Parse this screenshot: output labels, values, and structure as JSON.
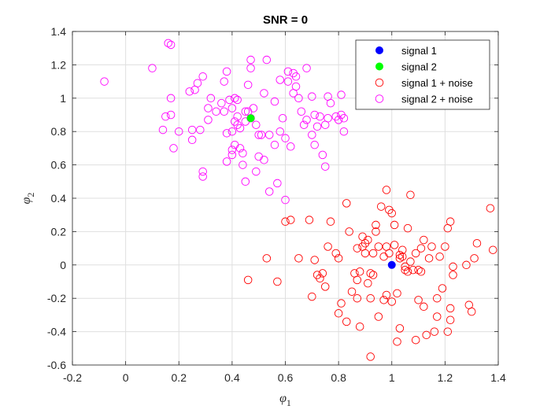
{
  "chart_data": {
    "type": "scatter",
    "title": "SNR = 0",
    "xlabel": {
      "base": "φ",
      "sub": "1"
    },
    "ylabel": {
      "base": "φ",
      "sub": "2"
    },
    "xlim": [
      -0.2,
      1.4
    ],
    "ylim": [
      -0.6,
      1.4
    ],
    "xticks": [
      "-0.2",
      "0",
      "0.2",
      "0.4",
      "0.6",
      "0.8",
      "1",
      "1.2",
      "1.4"
    ],
    "yticks": [
      "-0.6",
      "-0.4",
      "-0.2",
      "0",
      "0.2",
      "0.4",
      "0.6",
      "0.8",
      "1",
      "1.2",
      "1.4"
    ],
    "grid": true,
    "legend_position": "top-right",
    "series": [
      {
        "name": "signal 1",
        "marker": "filled",
        "color": "#0000ff",
        "points": [
          [
            1.0,
            0.0
          ]
        ]
      },
      {
        "name": "signal 2",
        "marker": "filled",
        "color": "#00ff00",
        "points": [
          [
            0.47,
            0.88
          ]
        ]
      },
      {
        "name": "signal 1 + noise",
        "marker": "open",
        "color": "#ff0000",
        "points": [
          [
            0.46,
            -0.09
          ],
          [
            0.53,
            0.04
          ],
          [
            0.57,
            -0.1
          ],
          [
            0.6,
            0.26
          ],
          [
            0.62,
            0.27
          ],
          [
            0.65,
            0.04
          ],
          [
            0.69,
            0.27
          ],
          [
            0.7,
            -0.19
          ],
          [
            0.71,
            0.03
          ],
          [
            0.72,
            -0.06
          ],
          [
            0.73,
            -0.08
          ],
          [
            0.74,
            -0.05
          ],
          [
            0.75,
            -0.13
          ],
          [
            0.76,
            0.11
          ],
          [
            0.77,
            0.26
          ],
          [
            0.79,
            0.07
          ],
          [
            0.8,
            0.04
          ],
          [
            0.8,
            -0.29
          ],
          [
            0.81,
            -0.23
          ],
          [
            0.83,
            -0.34
          ],
          [
            0.83,
            0.37
          ],
          [
            0.84,
            0.2
          ],
          [
            0.85,
            -0.16
          ],
          [
            0.86,
            -0.05
          ],
          [
            0.87,
            -0.09
          ],
          [
            0.87,
            0.1
          ],
          [
            0.87,
            -0.2
          ],
          [
            0.88,
            -0.04
          ],
          [
            0.88,
            -0.37
          ],
          [
            0.89,
            0.11
          ],
          [
            0.89,
            0.17
          ],
          [
            0.9,
            0.07
          ],
          [
            0.9,
            0.13
          ],
          [
            0.91,
            -0.11
          ],
          [
            0.91,
            0.15
          ],
          [
            0.92,
            -0.05
          ],
          [
            0.92,
            -0.2
          ],
          [
            0.92,
            -0.55
          ],
          [
            0.93,
            0.07
          ],
          [
            0.93,
            -0.06
          ],
          [
            0.94,
            0.24
          ],
          [
            0.94,
            0.2
          ],
          [
            0.95,
            0.11
          ],
          [
            0.95,
            -0.31
          ],
          [
            0.96,
            0.35
          ],
          [
            0.97,
            0.05
          ],
          [
            0.97,
            -0.21
          ],
          [
            0.98,
            -0.18
          ],
          [
            0.98,
            0.11
          ],
          [
            0.98,
            0.45
          ],
          [
            0.99,
            0.33
          ],
          [
            0.99,
            0.07
          ],
          [
            1.0,
            -0.22
          ],
          [
            1.0,
            0.31
          ],
          [
            1.01,
            0.12
          ],
          [
            1.01,
            0.24
          ],
          [
            1.02,
            -0.46
          ],
          [
            1.02,
            -0.17
          ],
          [
            1.03,
            0.06
          ],
          [
            1.03,
            0.04
          ],
          [
            1.03,
            -0.38
          ],
          [
            1.04,
            0.09
          ],
          [
            1.04,
            0.05
          ],
          [
            1.05,
            -0.01
          ],
          [
            1.05,
            -0.03
          ],
          [
            1.06,
            -0.04
          ],
          [
            1.06,
            0.22
          ],
          [
            1.07,
            0.42
          ],
          [
            1.07,
            0.02
          ],
          [
            1.08,
            -0.03
          ],
          [
            1.09,
            0.07
          ],
          [
            1.09,
            -0.45
          ],
          [
            1.1,
            -0.21
          ],
          [
            1.1,
            -0.03
          ],
          [
            1.11,
            -0.04
          ],
          [
            1.11,
            0.1
          ],
          [
            1.12,
            0.15
          ],
          [
            1.12,
            -0.25
          ],
          [
            1.13,
            -0.42
          ],
          [
            1.14,
            0.04
          ],
          [
            1.15,
            0.11
          ],
          [
            1.16,
            -0.4
          ],
          [
            1.17,
            -0.2
          ],
          [
            1.17,
            -0.31
          ],
          [
            1.18,
            0.05
          ],
          [
            1.19,
            -0.14
          ],
          [
            1.2,
            0.11
          ],
          [
            1.21,
            0.22
          ],
          [
            1.21,
            -0.4
          ],
          [
            1.22,
            -0.26
          ],
          [
            1.22,
            -0.33
          ],
          [
            1.22,
            0.26
          ],
          [
            1.23,
            -0.01
          ],
          [
            1.23,
            -0.06
          ],
          [
            1.28,
            0.0
          ],
          [
            1.29,
            -0.24
          ],
          [
            1.3,
            -0.28
          ],
          [
            1.31,
            0.04
          ],
          [
            1.32,
            0.13
          ],
          [
            1.37,
            0.34
          ],
          [
            1.38,
            0.09
          ]
        ]
      },
      {
        "name": "signal 2 + noise",
        "marker": "open",
        "color": "#ff00ff",
        "points": [
          [
            -0.08,
            1.1
          ],
          [
            0.1,
            1.18
          ],
          [
            0.14,
            0.81
          ],
          [
            0.15,
            0.89
          ],
          [
            0.16,
            1.33
          ],
          [
            0.17,
            1.32
          ],
          [
            0.17,
            1.0
          ],
          [
            0.17,
            0.9
          ],
          [
            0.18,
            0.7
          ],
          [
            0.2,
            0.8
          ],
          [
            0.24,
            1.04
          ],
          [
            0.25,
            0.81
          ],
          [
            0.25,
            0.75
          ],
          [
            0.26,
            1.05
          ],
          [
            0.27,
            1.09
          ],
          [
            0.28,
            0.81
          ],
          [
            0.29,
            1.13
          ],
          [
            0.29,
            0.56
          ],
          [
            0.29,
            0.53
          ],
          [
            0.31,
            0.94
          ],
          [
            0.31,
            0.87
          ],
          [
            0.32,
            1.0
          ],
          [
            0.34,
            0.92
          ],
          [
            0.36,
            0.97
          ],
          [
            0.37,
            0.92
          ],
          [
            0.37,
            1.1
          ],
          [
            0.38,
            1.16
          ],
          [
            0.38,
            0.79
          ],
          [
            0.38,
            0.62
          ],
          [
            0.39,
            0.99
          ],
          [
            0.4,
            0.94
          ],
          [
            0.4,
            0.69
          ],
          [
            0.4,
            0.8
          ],
          [
            0.4,
            0.66
          ],
          [
            0.41,
            1.0
          ],
          [
            0.41,
            0.72
          ],
          [
            0.41,
            0.86
          ],
          [
            0.42,
            0.99
          ],
          [
            0.42,
            0.89
          ],
          [
            0.42,
            0.84
          ],
          [
            0.43,
            0.7
          ],
          [
            0.43,
            0.82
          ],
          [
            0.44,
            0.6
          ],
          [
            0.44,
            0.67
          ],
          [
            0.45,
            0.86
          ],
          [
            0.45,
            0.92
          ],
          [
            0.45,
            0.5
          ],
          [
            0.46,
            1.08
          ],
          [
            0.46,
            0.92
          ],
          [
            0.47,
            1.23
          ],
          [
            0.47,
            1.18
          ],
          [
            0.47,
            0.88
          ],
          [
            0.48,
            0.94
          ],
          [
            0.49,
            0.56
          ],
          [
            0.49,
            0.84
          ],
          [
            0.5,
            0.78
          ],
          [
            0.5,
            0.65
          ],
          [
            0.51,
            0.78
          ],
          [
            0.52,
            1.03
          ],
          [
            0.52,
            0.63
          ],
          [
            0.53,
            1.23
          ],
          [
            0.54,
            0.78
          ],
          [
            0.54,
            0.44
          ],
          [
            0.56,
            0.98
          ],
          [
            0.56,
            0.72
          ],
          [
            0.57,
            0.49
          ],
          [
            0.58,
            1.11
          ],
          [
            0.58,
            0.8
          ],
          [
            0.59,
            0.88
          ],
          [
            0.6,
            0.76
          ],
          [
            0.6,
            0.39
          ],
          [
            0.61,
            1.16
          ],
          [
            0.61,
            1.1
          ],
          [
            0.62,
            0.71
          ],
          [
            0.63,
            1.15
          ],
          [
            0.63,
            1.03
          ],
          [
            0.64,
            1.13
          ],
          [
            0.64,
            1.07
          ],
          [
            0.65,
            1.0
          ],
          [
            0.66,
            0.92
          ],
          [
            0.67,
            0.84
          ],
          [
            0.68,
            0.87
          ],
          [
            0.68,
            1.18
          ],
          [
            0.7,
            1.01
          ],
          [
            0.7,
            0.78
          ],
          [
            0.71,
            0.9
          ],
          [
            0.71,
            0.72
          ],
          [
            0.72,
            0.83
          ],
          [
            0.73,
            0.89
          ],
          [
            0.74,
            0.66
          ],
          [
            0.75,
            0.84
          ],
          [
            0.75,
            0.59
          ],
          [
            0.76,
            1.01
          ],
          [
            0.76,
            0.88
          ],
          [
            0.77,
            0.97
          ],
          [
            0.79,
            0.89
          ],
          [
            0.8,
            0.87
          ],
          [
            0.81,
            1.02
          ],
          [
            0.81,
            0.9
          ],
          [
            0.82,
            0.88
          ],
          [
            0.82,
            0.8
          ]
        ]
      }
    ]
  }
}
